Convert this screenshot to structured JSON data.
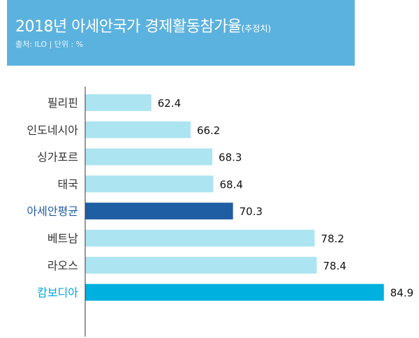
{
  "header": {
    "title": "2018년 아세안국가 경제활동참가율",
    "title_note": "(추정치)",
    "source": "출처: ILO | 단위 : %"
  },
  "colors": {
    "header_bg": "#5cb2de",
    "bar_default": "#ade4f1",
    "bar_average": "#1f5ea3",
    "bar_max": "#00b0df",
    "label_average": "#1f5ea3",
    "label_max": "#00a6d9",
    "axis": "#333333"
  },
  "chart_data": {
    "type": "bar",
    "orientation": "horizontal",
    "categories": [
      "필리핀",
      "인도네시아",
      "싱가포르",
      "태국",
      "아세안평균",
      "베트남",
      "라오스",
      "캄보디아"
    ],
    "values": [
      62.4,
      66.2,
      68.3,
      68.4,
      70.3,
      78.2,
      78.4,
      84.9
    ],
    "highlight": {
      "아세안평균": "average",
      "캄보디아": "max"
    },
    "unit": "%",
    "xlim": [
      56,
      86
    ]
  }
}
